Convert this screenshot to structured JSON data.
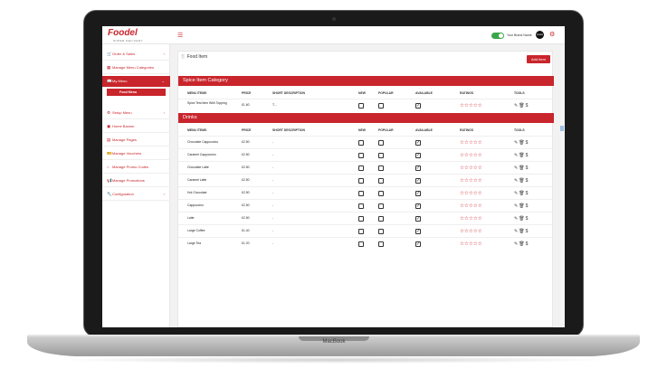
{
  "device": {
    "brand_label": "MacBook"
  },
  "header": {
    "logo_text": "Foodel",
    "logo_subtext": "SUPER DELIVERY",
    "store_toggle_label": "Your Brand Name",
    "avatar_text": "foodel"
  },
  "sidebar": {
    "items": [
      {
        "label": "Order & Sales",
        "icon": "cart-icon",
        "chevron": true
      },
      {
        "label": "Manage Menu Categories",
        "icon": "grid-icon",
        "chevron": false
      },
      {
        "label": "My Menu",
        "icon": "menu-book-icon",
        "chevron": true,
        "active": true
      },
      {
        "label": "Setup Menu",
        "icon": "gear-icon",
        "chevron": true
      },
      {
        "label": "Home Banner",
        "icon": "image-icon",
        "chevron": false
      },
      {
        "label": "Manage Pages",
        "icon": "page-icon",
        "chevron": false
      },
      {
        "label": "Manage Vouchers",
        "icon": "ticket-icon",
        "chevron": false
      },
      {
        "label": "Manage Promo Codes",
        "icon": "tag-icon",
        "chevron": false
      },
      {
        "label": "Manage Promotions",
        "icon": "megaphone-icon",
        "chevron": false
      },
      {
        "label": "Configuration",
        "icon": "wrench-icon",
        "chevron": true
      }
    ],
    "sub_item": "Food Menu"
  },
  "page": {
    "title": "Food Item",
    "add_button": "Add Item"
  },
  "columns": [
    "MENU ITEMS",
    "PRICE",
    "SHORT DESCRIPTION",
    "NEW",
    "POPULAR",
    "AVAILABLE",
    "RATINGS",
    "TOOLS"
  ],
  "sections": [
    {
      "title": "Spice Item Category",
      "rows": [
        {
          "name": "Spice Test Item With Topping",
          "price": "£1.60",
          "desc": "T...",
          "new": false,
          "popular": false,
          "available": true
        }
      ]
    },
    {
      "title": "Drinks",
      "rows": [
        {
          "name": "Chocolate Cappuccino",
          "price": "£2.50",
          "desc": "-",
          "new": false,
          "popular": false,
          "available": true
        },
        {
          "name": "Caramel Cappuccino",
          "price": "£2.50",
          "desc": "-",
          "new": false,
          "popular": false,
          "available": true
        },
        {
          "name": "Chocolate Latte",
          "price": "£2.50",
          "desc": "-",
          "new": false,
          "popular": false,
          "available": true
        },
        {
          "name": "Caramel Latte",
          "price": "£2.50",
          "desc": "-",
          "new": false,
          "popular": false,
          "available": true
        },
        {
          "name": "Hot Chocolate",
          "price": "£2.50",
          "desc": "-",
          "new": false,
          "popular": false,
          "available": true
        },
        {
          "name": "Cappuccino",
          "price": "£2.50",
          "desc": "-",
          "new": false,
          "popular": false,
          "available": true
        },
        {
          "name": "Latte",
          "price": "£2.50",
          "desc": "-",
          "new": false,
          "popular": false,
          "available": true
        },
        {
          "name": "Large Coffee",
          "price": "£1.40",
          "desc": "-",
          "new": false,
          "popular": false,
          "available": true
        },
        {
          "name": "Large Tea",
          "price": "£1.20",
          "desc": "-",
          "new": false,
          "popular": false,
          "available": true
        }
      ]
    }
  ],
  "ratings_stars": "☆☆☆☆☆",
  "colors": {
    "accent": "#c9252c",
    "toggle_on": "#3aa64a"
  }
}
